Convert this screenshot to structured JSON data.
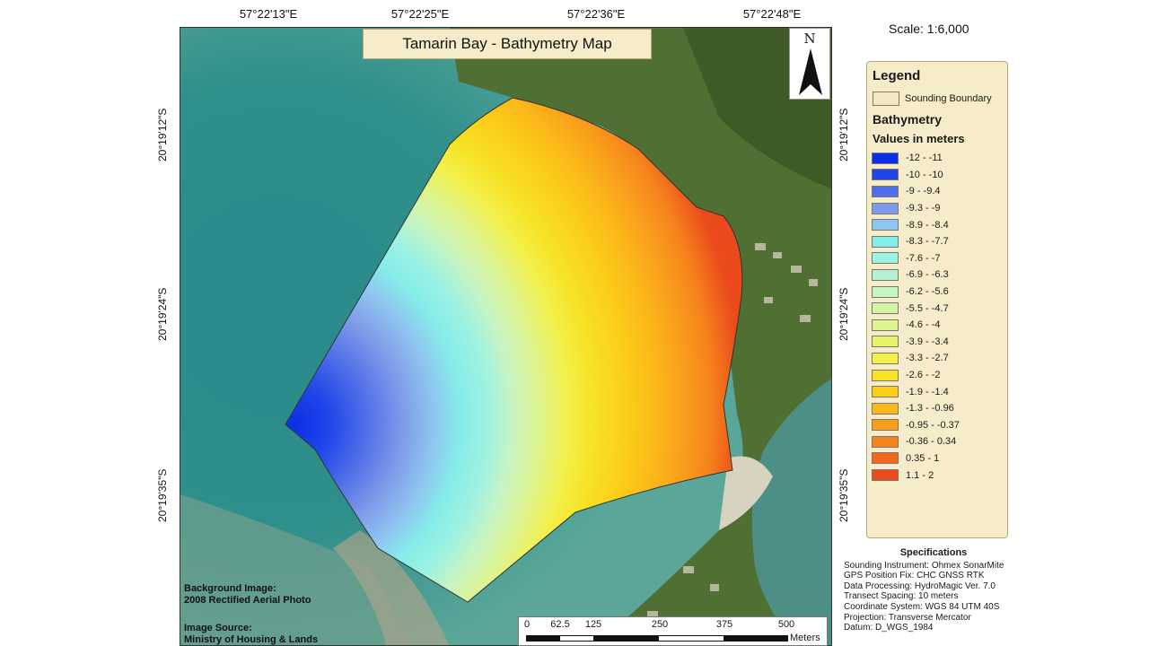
{
  "map": {
    "title": "Tamarin Bay - Bathymetry Map",
    "scale_text": "Scale: 1:6,000",
    "north_label": "N",
    "lon_ticks": [
      "57°22'13\"E",
      "57°22'25\"E",
      "57°22'36\"E",
      "57°22'48\"E"
    ],
    "lat_ticks": [
      "20°19'12\"S",
      "20°19'24\"S",
      "20°19'35\"S"
    ]
  },
  "legend": {
    "title": "Legend",
    "boundary_label": "Sounding Boundary",
    "bathymetry_title": "Bathymetry",
    "values_title": "Values in meters",
    "classes": [
      {
        "label": "-12 - -11",
        "color": "#0b2fe6"
      },
      {
        "label": "-10 - -10",
        "color": "#2046e8"
      },
      {
        "label": "-9 - -9.4",
        "color": "#4f6fe8"
      },
      {
        "label": "-9.3 - -9",
        "color": "#7e9ae9"
      },
      {
        "label": "-8.9 - -8.4",
        "color": "#8fc4f0"
      },
      {
        "label": "-8.3 - -7.7",
        "color": "#86ece8"
      },
      {
        "label": "-7.6 - -7",
        "color": "#9df2e2"
      },
      {
        "label": "-6.9 - -6.3",
        "color": "#b6f2d2"
      },
      {
        "label": "-6.2 - -5.6",
        "color": "#c9f4c0"
      },
      {
        "label": "-5.5 - -4.7",
        "color": "#d6f4a6"
      },
      {
        "label": "-4.6 - -4",
        "color": "#def48c"
      },
      {
        "label": "-3.9 - -3.4",
        "color": "#e8f36a"
      },
      {
        "label": "-3.3 - -2.7",
        "color": "#f2f04a"
      },
      {
        "label": "-2.6 - -2",
        "color": "#f7e226"
      },
      {
        "label": "-1.9 - -1.4",
        "color": "#fbcf18"
      },
      {
        "label": "-1.3 - -0.96",
        "color": "#fbb81a"
      },
      {
        "label": "-0.95 - -0.37",
        "color": "#f99f1c"
      },
      {
        "label": "-0.36 - 0.34",
        "color": "#f6841c"
      },
      {
        "label": "0.35 - 1",
        "color": "#f2671c"
      },
      {
        "label": "1.1 - 2",
        "color": "#ea4a1c"
      }
    ]
  },
  "specifications": {
    "title": "Specifications",
    "lines": [
      "Sounding Instrument: Ohmex SonarMite",
      "GPS Position Fix: CHC GNSS RTK",
      "Data Processing: HydroMagic Ver. 7.0",
      "Transect Spacing: 10 meters",
      "Coordinate System: WGS 84 UTM 40S",
      "Projection: Transverse Mercator",
      "Datum: D_WGS_1984"
    ]
  },
  "background_note": {
    "line1": "Background Image:",
    "line2": "2008 Rectified Aerial Photo"
  },
  "source_note": {
    "line1": "Image Source:",
    "line2": "Ministry of Housing & Lands"
  },
  "scalebar": {
    "labels": [
      "0",
      "62.5",
      "125",
      "250",
      "375",
      "500"
    ],
    "unit": "Meters"
  },
  "colors": {
    "sea_deep": "#1f7f86",
    "sea_shallow": "#5aa79a",
    "land": "#5a7a3a",
    "panel": "#f6ecc9"
  }
}
